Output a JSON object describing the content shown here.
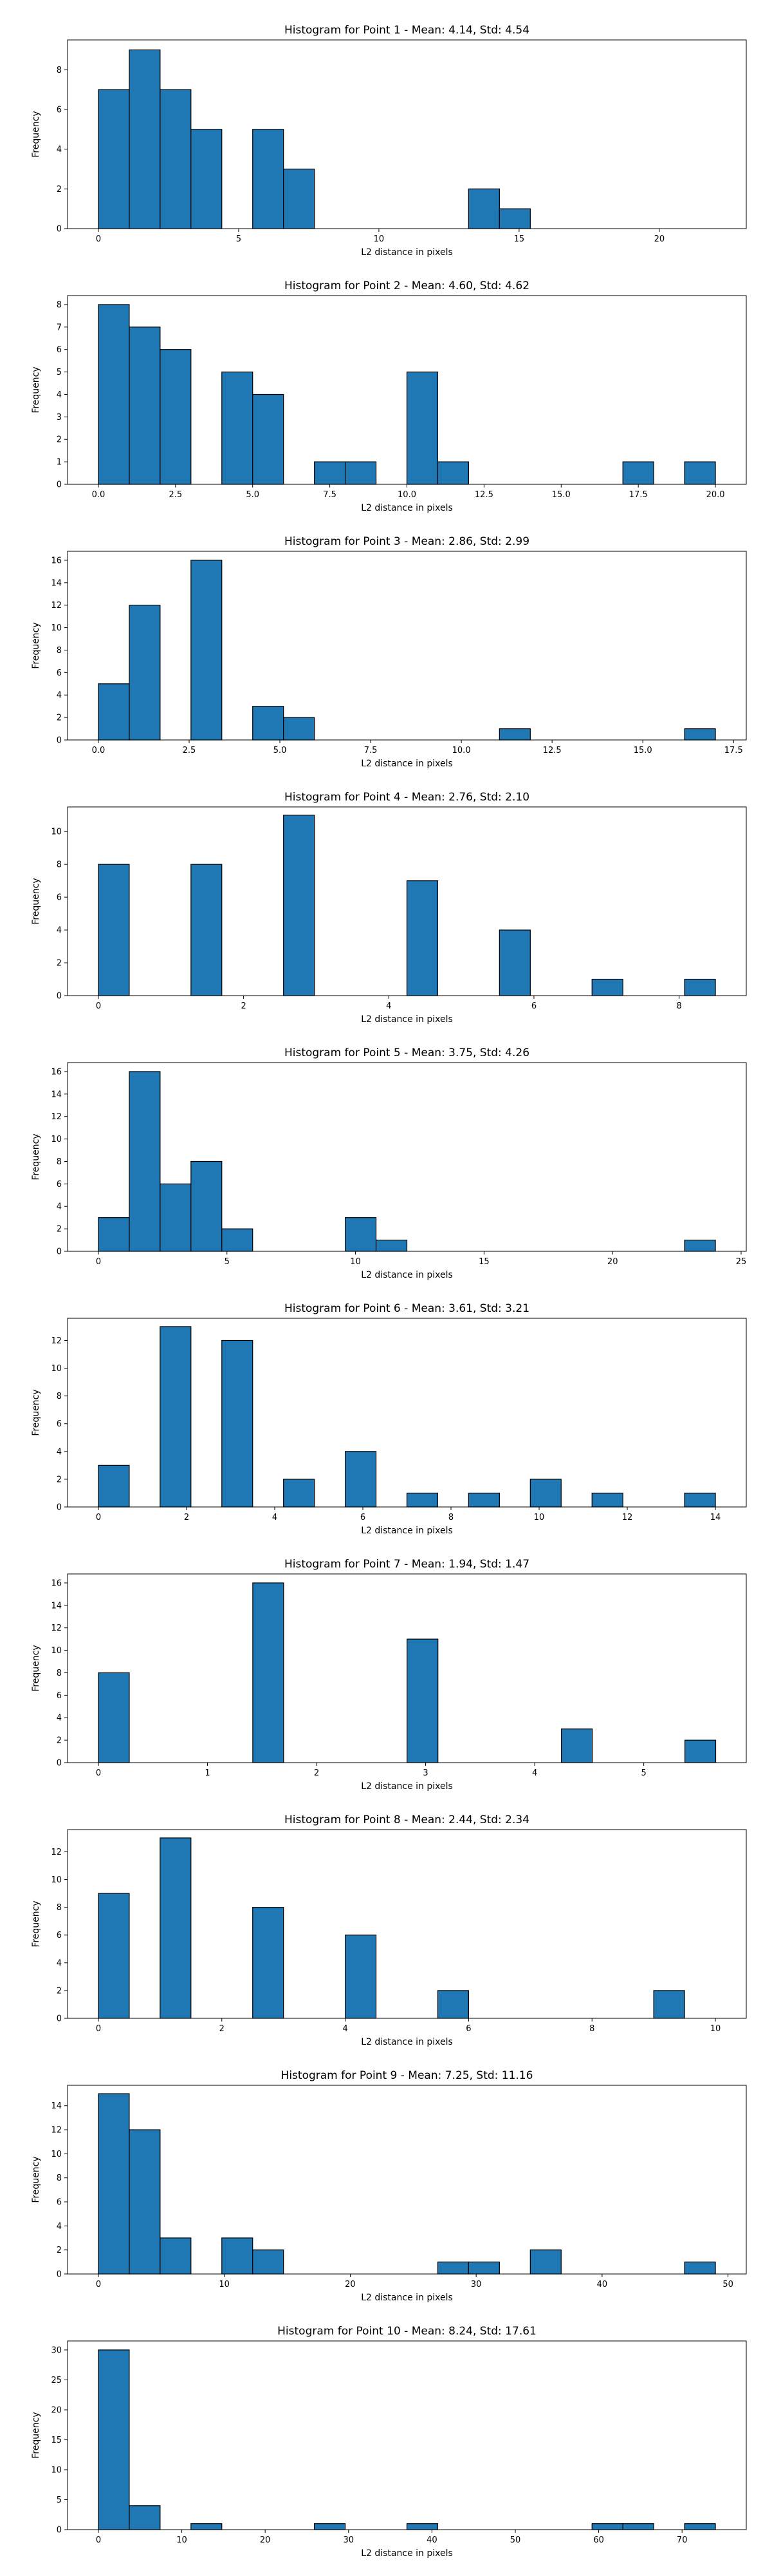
{
  "colors": {
    "bar_fill": "#1f77b4",
    "bar_edge": "#000000",
    "axes": "#000000",
    "background": "#ffffff"
  },
  "chart_data": [
    {
      "type": "bar",
      "title": "Histogram for Point 1 - Mean: 4.14, Std: 4.54",
      "xlabel": "L2 distance in pixels",
      "ylabel": "Frequency",
      "xlim": [
        -1.1,
        23.1
      ],
      "ylim": [
        0,
        9.5
      ],
      "bin_width": 1.1,
      "xticks": [
        0,
        5,
        10,
        15,
        20
      ],
      "yticks": [
        0,
        2,
        4,
        6,
        8
      ],
      "bins": [
        0.0,
        1.1,
        2.2,
        3.3,
        4.4,
        5.5,
        6.6,
        7.7,
        8.8,
        9.9,
        11.0,
        12.1,
        13.2,
        14.3,
        15.4,
        16.5,
        17.6,
        18.7,
        19.8,
        20.9,
        22.0
      ],
      "counts": [
        7,
        9,
        7,
        5,
        0,
        5,
        3,
        0,
        0,
        0,
        0,
        0,
        2,
        1,
        0,
        0,
        0,
        0,
        0,
        0
      ]
    },
    {
      "type": "bar",
      "title": "Histogram for Point 2 - Mean: 4.60, Std: 4.62",
      "xlabel": "L2 distance in pixels",
      "ylabel": "Frequency",
      "xlim": [
        -1.0,
        21.0
      ],
      "ylim": [
        0,
        8.4
      ],
      "bin_width": 1.0,
      "xticks": [
        0.0,
        2.5,
        5.0,
        7.5,
        10.0,
        12.5,
        15.0,
        17.5,
        20.0
      ],
      "yticks": [
        0,
        1,
        2,
        3,
        4,
        5,
        6,
        7,
        8
      ],
      "bins": [
        0,
        1,
        2,
        3,
        4,
        5,
        6,
        7,
        8,
        9,
        10,
        11,
        12,
        13,
        14,
        15,
        16,
        17,
        18,
        19,
        20
      ],
      "counts": [
        8,
        7,
        6,
        0,
        5,
        4,
        0,
        1,
        1,
        0,
        5,
        1,
        0,
        0,
        0,
        0,
        0,
        1,
        0,
        1
      ]
    },
    {
      "type": "bar",
      "title": "Histogram for Point 3 - Mean: 2.86, Std: 2.99",
      "xlabel": "L2 distance in pixels",
      "ylabel": "Frequency",
      "xlim": [
        -0.85,
        17.85
      ],
      "ylim": [
        0,
        16.8
      ],
      "bin_width": 0.85,
      "xticks": [
        0.0,
        2.5,
        5.0,
        7.5,
        10.0,
        12.5,
        15.0,
        17.5
      ],
      "yticks": [
        0,
        2,
        4,
        6,
        8,
        10,
        12,
        14,
        16
      ],
      "bins": [
        0.0,
        0.85,
        1.7,
        2.55,
        3.4,
        4.25,
        5.1,
        5.95,
        6.8,
        7.65,
        8.5,
        9.35,
        10.2,
        11.05,
        11.9,
        12.75,
        13.6,
        14.45,
        15.3,
        16.15,
        17.0
      ],
      "counts": [
        5,
        12,
        0,
        16,
        0,
        3,
        2,
        0,
        0,
        0,
        0,
        0,
        0,
        1,
        0,
        0,
        0,
        0,
        0,
        1
      ]
    },
    {
      "type": "bar",
      "title": "Histogram for Point 4 - Mean: 2.76, Std: 2.10",
      "xlabel": "L2 distance in pixels",
      "ylabel": "Frequency",
      "xlim": [
        -0.425,
        8.925
      ],
      "ylim": [
        0,
        11.5
      ],
      "bin_width": 0.425,
      "xticks": [
        0,
        2,
        4,
        6,
        8
      ],
      "yticks": [
        0,
        2,
        4,
        6,
        8,
        10
      ],
      "bins": [
        0.0,
        0.425,
        0.85,
        1.275,
        1.7,
        2.125,
        2.55,
        2.975,
        3.4,
        3.825,
        4.25,
        4.675,
        5.1,
        5.525,
        5.95,
        6.375,
        6.8,
        7.225,
        7.65,
        8.075,
        8.5
      ],
      "counts": [
        8,
        0,
        0,
        8,
        0,
        0,
        11,
        0,
        0,
        0,
        7,
        0,
        0,
        4,
        0,
        0,
        1,
        0,
        0,
        1
      ]
    },
    {
      "type": "bar",
      "title": "Histogram for Point 5 - Mean: 3.75, Std: 4.26",
      "xlabel": "L2 distance in pixels",
      "ylabel": "Frequency",
      "xlim": [
        -1.2,
        25.2
      ],
      "ylim": [
        0,
        16.8
      ],
      "bin_width": 1.2,
      "xticks": [
        0,
        5,
        10,
        15,
        20,
        25
      ],
      "yticks": [
        0,
        2,
        4,
        6,
        8,
        10,
        12,
        14,
        16
      ],
      "bins": [
        0.0,
        1.2,
        2.4,
        3.6,
        4.8,
        6.0,
        7.2,
        8.4,
        9.6,
        10.8,
        12.0,
        13.2,
        14.4,
        15.6,
        16.8,
        18.0,
        19.2,
        20.4,
        21.6,
        22.8,
        24.0
      ],
      "counts": [
        3,
        16,
        6,
        8,
        2,
        0,
        0,
        0,
        3,
        1,
        0,
        0,
        0,
        0,
        0,
        0,
        0,
        0,
        0,
        1
      ]
    },
    {
      "type": "bar",
      "title": "Histogram for Point 6 - Mean: 3.61, Std: 3.21",
      "xlabel": "L2 distance in pixels",
      "ylabel": "Frequency",
      "xlim": [
        -0.7,
        14.7
      ],
      "ylim": [
        0,
        13.6
      ],
      "bin_width": 0.7,
      "xticks": [
        0,
        2,
        4,
        6,
        8,
        10,
        12,
        14
      ],
      "yticks": [
        0,
        2,
        4,
        6,
        8,
        10,
        12
      ],
      "bins": [
        0.0,
        0.7,
        1.4,
        2.1,
        2.8,
        3.5,
        4.2,
        4.9,
        5.6,
        6.3,
        7.0,
        7.7,
        8.4,
        9.1,
        9.8,
        10.5,
        11.2,
        11.9,
        12.6,
        13.3,
        14.0
      ],
      "counts": [
        3,
        0,
        13,
        0,
        12,
        0,
        2,
        0,
        4,
        0,
        1,
        0,
        1,
        0,
        2,
        0,
        1,
        0,
        0,
        1
      ]
    },
    {
      "type": "bar",
      "title": "Histogram for Point 7 - Mean: 1.94, Std: 1.47",
      "xlabel": "L2 distance in pixels",
      "ylabel": "Frequency",
      "xlim": [
        -0.283,
        5.94
      ],
      "ylim": [
        0,
        16.8
      ],
      "bin_width": 0.283,
      "xticks": [
        0,
        1,
        2,
        3,
        4,
        5
      ],
      "yticks": [
        0,
        2,
        4,
        6,
        8,
        10,
        12,
        14,
        16
      ],
      "bins": [
        0.0,
        0.283,
        0.566,
        0.849,
        1.132,
        1.415,
        1.698,
        1.981,
        2.264,
        2.547,
        2.83,
        3.113,
        3.396,
        3.679,
        3.962,
        4.245,
        4.528,
        4.811,
        5.094,
        5.377,
        5.66
      ],
      "counts": [
        8,
        0,
        0,
        0,
        0,
        16,
        0,
        0,
        0,
        0,
        11,
        0,
        0,
        0,
        0,
        3,
        0,
        0,
        0,
        2
      ]
    },
    {
      "type": "bar",
      "title": "Histogram for Point 8 - Mean: 2.44, Std: 2.34",
      "xlabel": "L2 distance in pixels",
      "ylabel": "Frequency",
      "xlim": [
        -0.5,
        10.5
      ],
      "ylim": [
        0,
        13.6
      ],
      "bin_width": 0.5,
      "xticks": [
        0,
        2,
        4,
        6,
        8,
        10
      ],
      "yticks": [
        0,
        2,
        4,
        6,
        8,
        10,
        12
      ],
      "bins": [
        0.0,
        0.5,
        1.0,
        1.5,
        2.0,
        2.5,
        3.0,
        3.5,
        4.0,
        4.5,
        5.0,
        5.5,
        6.0,
        6.5,
        7.0,
        7.5,
        8.0,
        8.5,
        9.0,
        9.5,
        10.0
      ],
      "counts": [
        9,
        0,
        13,
        0,
        0,
        8,
        0,
        0,
        6,
        0,
        0,
        2,
        0,
        0,
        0,
        0,
        0,
        0,
        2,
        0
      ]
    },
    {
      "type": "bar",
      "title": "Histogram for Point 9 - Mean: 7.25, Std: 11.16",
      "xlabel": "L2 distance in pixels",
      "ylabel": "Frequency",
      "xlim": [
        -2.45,
        51.45
      ],
      "ylim": [
        0,
        15.7
      ],
      "bin_width": 2.45,
      "xticks": [
        0,
        10,
        20,
        30,
        40,
        50
      ],
      "yticks": [
        0,
        2,
        4,
        6,
        8,
        10,
        12,
        14
      ],
      "bins": [
        0.0,
        2.45,
        4.9,
        7.35,
        9.8,
        12.25,
        14.7,
        17.15,
        19.6,
        22.05,
        24.5,
        26.95,
        29.4,
        31.85,
        34.3,
        36.75,
        39.2,
        41.65,
        44.1,
        46.55,
        49.0
      ],
      "counts": [
        15,
        12,
        3,
        0,
        3,
        2,
        0,
        0,
        0,
        0,
        0,
        1,
        1,
        0,
        2,
        0,
        0,
        0,
        0,
        1
      ]
    },
    {
      "type": "bar",
      "title": "Histogram for Point 10 - Mean: 8.24, Std: 17.61",
      "xlabel": "L2 distance in pixels",
      "ylabel": "Frequency",
      "xlim": [
        -3.7,
        77.7
      ],
      "ylim": [
        0,
        31.5
      ],
      "bin_width": 3.7,
      "xticks": [
        0,
        10,
        20,
        30,
        40,
        50,
        60,
        70
      ],
      "yticks": [
        0,
        5,
        10,
        15,
        20,
        25,
        30
      ],
      "bins": [
        0.0,
        3.7,
        7.4,
        11.1,
        14.8,
        18.5,
        22.2,
        25.9,
        29.6,
        33.3,
        37.0,
        40.7,
        44.4,
        48.1,
        51.8,
        55.5,
        59.2,
        62.9,
        66.6,
        70.3,
        74.0
      ],
      "counts": [
        30,
        4,
        0,
        1,
        0,
        0,
        0,
        1,
        0,
        0,
        1,
        0,
        0,
        0,
        0,
        0,
        1,
        1,
        0,
        1
      ]
    }
  ]
}
